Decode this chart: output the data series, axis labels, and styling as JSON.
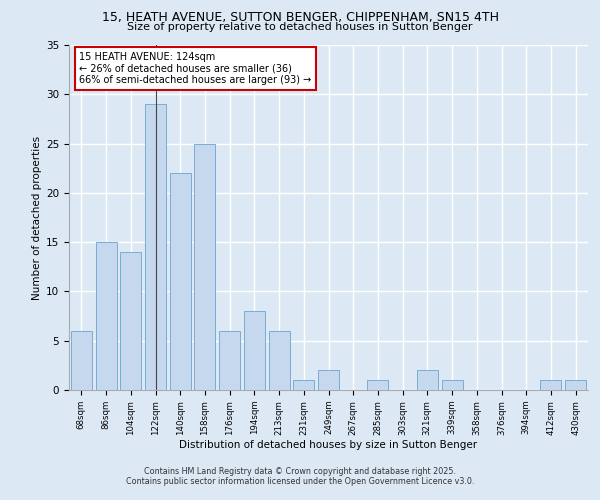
{
  "title1": "15, HEATH AVENUE, SUTTON BENGER, CHIPPENHAM, SN15 4TH",
  "title2": "Size of property relative to detached houses in Sutton Benger",
  "xlabel": "Distribution of detached houses by size in Sutton Benger",
  "ylabel": "Number of detached properties",
  "categories": [
    "68sqm",
    "86sqm",
    "104sqm",
    "122sqm",
    "140sqm",
    "158sqm",
    "176sqm",
    "194sqm",
    "213sqm",
    "231sqm",
    "249sqm",
    "267sqm",
    "285sqm",
    "303sqm",
    "321sqm",
    "339sqm",
    "358sqm",
    "376sqm",
    "394sqm",
    "412sqm",
    "430sqm"
  ],
  "values": [
    6,
    15,
    14,
    29,
    22,
    25,
    6,
    8,
    6,
    1,
    2,
    0,
    1,
    0,
    2,
    1,
    0,
    0,
    0,
    1,
    1
  ],
  "bar_color": "#c5d8ee",
  "bar_edge_color": "#7aadd4",
  "bg_color": "#dce9f5",
  "grid_color": "#ffffff",
  "annotation_box_text": "15 HEATH AVENUE: 124sqm\n← 26% of detached houses are smaller (36)\n66% of semi-detached houses are larger (93) →",
  "annotation_box_color": "#ffffff",
  "annotation_box_edge_color": "#cc0000",
  "property_bar_index": 3,
  "ylim": [
    0,
    35
  ],
  "yticks": [
    0,
    5,
    10,
    15,
    20,
    25,
    30,
    35
  ],
  "footer1": "Contains HM Land Registry data © Crown copyright and database right 2025.",
  "footer2": "Contains public sector information licensed under the Open Government Licence v3.0."
}
